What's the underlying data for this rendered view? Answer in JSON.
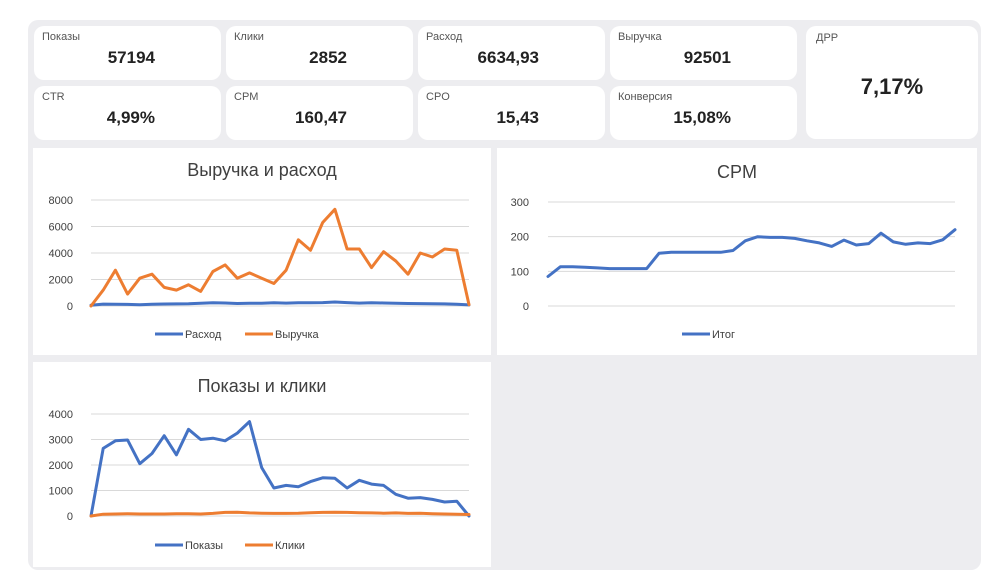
{
  "kpis": [
    {
      "label": "Показы",
      "value": "57194"
    },
    {
      "label": "Клики",
      "value": "2852"
    },
    {
      "label": "Расход",
      "value": "6634,93"
    },
    {
      "label": "Выручка",
      "value": "92501"
    },
    {
      "label": "ДРР",
      "value": "7,17%"
    },
    {
      "label": "CTR",
      "value": "4,99%"
    },
    {
      "label": "CPM",
      "value": "160,47"
    },
    {
      "label": "CPO",
      "value": "15,43"
    },
    {
      "label": "Конверсия",
      "value": "15,08%"
    }
  ],
  "colors": {
    "blue": "#4472c4",
    "orange": "#ed7d31",
    "grid": "#d9d9d9"
  },
  "chart_data": [
    {
      "id": "revenue",
      "type": "line",
      "title": "Выручка и расход",
      "ylim": [
        0,
        8000
      ],
      "yticks": [
        "8000",
        "6000",
        "4000",
        "2000",
        "0"
      ],
      "series": [
        {
          "name": "Расход",
          "color": "#4472c4",
          "values": [
            50,
            140,
            130,
            120,
            90,
            130,
            150,
            160,
            170,
            210,
            250,
            230,
            190,
            200,
            210,
            240,
            220,
            250,
            240,
            260,
            300,
            260,
            220,
            250,
            230,
            210,
            190,
            180,
            170,
            160,
            130,
            80
          ]
        },
        {
          "name": "Выручка",
          "color": "#ed7d31",
          "values": [
            0,
            1200,
            2700,
            900,
            2100,
            2400,
            1400,
            1200,
            1600,
            1100,
            2600,
            3100,
            2100,
            2500,
            2100,
            1700,
            2700,
            5000,
            4200,
            6300,
            7300,
            4300,
            4300,
            2900,
            4100,
            3400,
            2400,
            4000,
            3700,
            4300,
            4200,
            100
          ]
        }
      ]
    },
    {
      "id": "cpm",
      "type": "line",
      "title": "CPM",
      "ylim": [
        0,
        300
      ],
      "yticks": [
        "300",
        "200",
        "100",
        "0"
      ],
      "series": [
        {
          "name": "Итог",
          "color": "#4472c4",
          "values": [
            85,
            113,
            113,
            112,
            110,
            108,
            108,
            108,
            108,
            152,
            155,
            155,
            155,
            155,
            155,
            160,
            188,
            200,
            198,
            198,
            195,
            188,
            182,
            172,
            190,
            176,
            180,
            210,
            185,
            178,
            182,
            180,
            191,
            220
          ]
        }
      ]
    },
    {
      "id": "shows",
      "type": "line",
      "title": "Показы и клики",
      "ylim": [
        0,
        4000
      ],
      "yticks": [
        "4000",
        "3000",
        "2000",
        "1000",
        "0"
      ],
      "series": [
        {
          "name": "Показы",
          "color": "#4472c4",
          "values": [
            0,
            2650,
            2950,
            2980,
            2050,
            2450,
            3150,
            2400,
            3400,
            3000,
            3050,
            2950,
            3250,
            3700,
            1900,
            1100,
            1200,
            1150,
            1350,
            1500,
            1480,
            1100,
            1400,
            1250,
            1200,
            850,
            700,
            720,
            650,
            550,
            580,
            0
          ]
        },
        {
          "name": "Клики",
          "color": "#ed7d31",
          "values": [
            0,
            70,
            80,
            90,
            80,
            80,
            80,
            85,
            90,
            80,
            100,
            140,
            150,
            120,
            110,
            100,
            100,
            110,
            130,
            140,
            150,
            140,
            130,
            120,
            110,
            120,
            100,
            110,
            90,
            80,
            70,
            60
          ]
        }
      ]
    }
  ]
}
